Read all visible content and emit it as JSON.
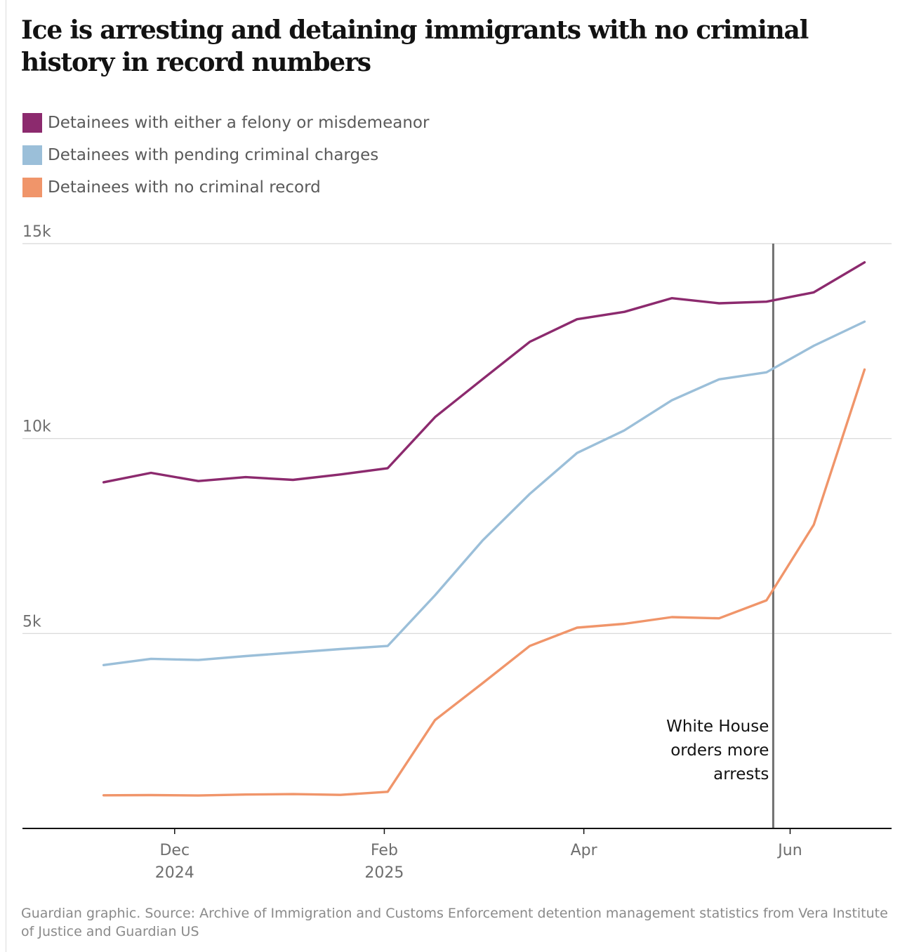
{
  "chart_data": {
    "type": "line",
    "title": "Ice is arresting and detaining immigrants with no criminal history in record numbers",
    "xlabel": "",
    "ylabel": "",
    "x": [
      "2024-11-10",
      "2024-11-24",
      "2024-12-08",
      "2024-12-22",
      "2025-01-05",
      "2025-01-19",
      "2025-02-02",
      "2025-02-16",
      "2025-03-02",
      "2025-03-16",
      "2025-03-30",
      "2025-04-13",
      "2025-04-27",
      "2025-05-11",
      "2025-05-25",
      "2025-06-08",
      "2025-06-23"
    ],
    "xlim": [
      "2024-10-17",
      "2025-07-01"
    ],
    "ylim": [
      0,
      15000
    ],
    "y_ticks": [
      {
        "value": 5000,
        "label": "5k"
      },
      {
        "value": 10000,
        "label": "10k"
      },
      {
        "value": 15000,
        "label": "15k"
      }
    ],
    "x_ticks": [
      {
        "date": "2024-12-01",
        "label": "Dec",
        "sublabel": "2024"
      },
      {
        "date": "2025-02-01",
        "label": "Feb",
        "sublabel": "2025"
      },
      {
        "date": "2025-04-01",
        "label": "Apr",
        "sublabel": ""
      },
      {
        "date": "2025-06-01",
        "label": "Jun",
        "sublabel": ""
      }
    ],
    "grid": true,
    "legend_position": "top-left",
    "series": [
      {
        "name": "Detainees with either a felony or misdemeanor",
        "color": "#8c2a6e",
        "values": [
          8880,
          9120,
          8910,
          9010,
          8940,
          9080,
          9240,
          10550,
          11520,
          12480,
          13060,
          13250,
          13600,
          13470,
          13510,
          13750,
          14520
        ]
      },
      {
        "name": "Detainees with pending criminal charges",
        "color": "#9bbfd9",
        "values": [
          4190,
          4350,
          4320,
          4420,
          4510,
          4600,
          4680,
          5980,
          7380,
          8580,
          9630,
          10210,
          10980,
          11520,
          11700,
          12380,
          13000
        ]
      },
      {
        "name": "Detainees with no criminal record",
        "color": "#f0956a",
        "values": [
          850,
          855,
          845,
          870,
          880,
          860,
          940,
          2780,
          3720,
          4680,
          5150,
          5250,
          5420,
          5390,
          5850,
          7790,
          11770
        ]
      }
    ],
    "annotations": [
      {
        "type": "vline",
        "date": "2025-05-27",
        "color": "#707070",
        "text_lines": [
          "White House",
          "orders more",
          "arrests"
        ]
      }
    ]
  },
  "source": {
    "text": "Guardian graphic. Source: Archive of Immigration and Customs Enforcement detention management statistics from Vera Institute of Justice and Guardian US"
  }
}
